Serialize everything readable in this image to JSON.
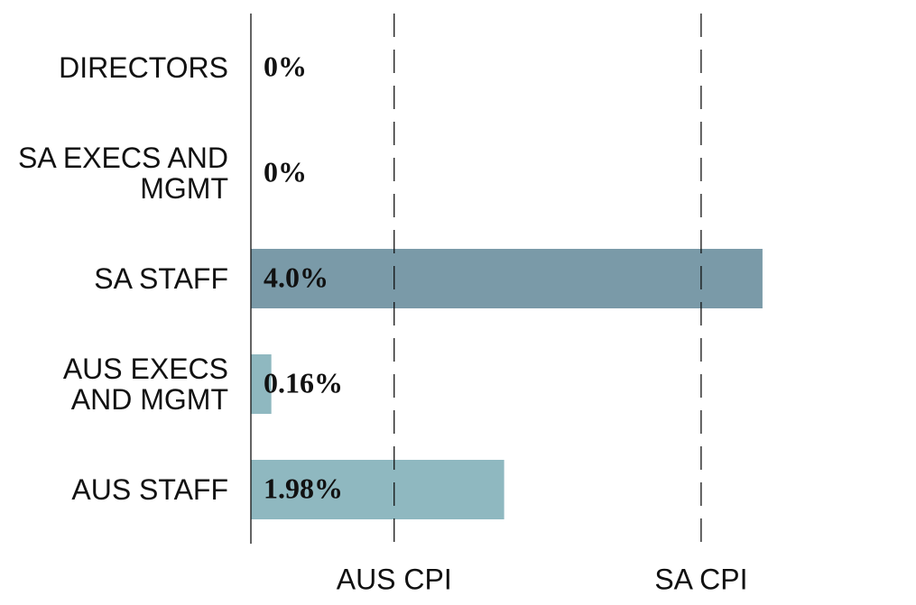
{
  "chart_data": {
    "type": "hbar",
    "categories": [
      "DIRECTORS",
      "SA EXECS AND MGMT",
      "SA STAFF",
      "AUS EXECS AND MGMT",
      "AUS STAFF"
    ],
    "values": [
      0,
      0,
      4.0,
      0.16,
      1.98
    ],
    "value_labels": [
      "0%",
      "0%",
      "4.0%",
      "0.16%",
      "1.98%"
    ],
    "colors": [
      "#7a9aa8",
      "#7a9aa8",
      "#7a9aa8",
      "#8fb8c0",
      "#8fb8c0"
    ],
    "xlim": [
      0,
      5.2
    ],
    "reference_lines": [
      {
        "label": "AUS CPI",
        "value": 1.12
      },
      {
        "label": "SA CPI",
        "value": 3.52
      }
    ]
  }
}
